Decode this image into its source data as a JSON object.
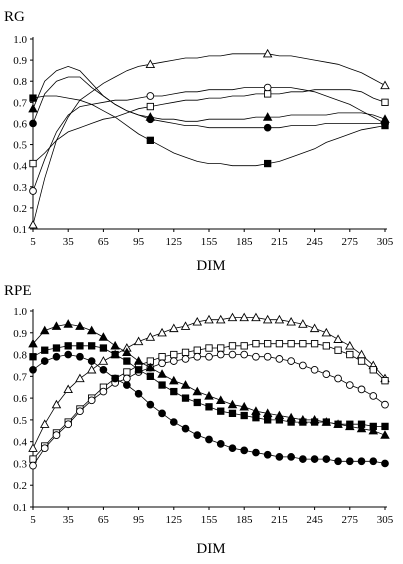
{
  "chart_data": [
    {
      "type": "line",
      "title": "RG",
      "xlabel": "DIM",
      "ylabel": "",
      "xlim": [
        5,
        305
      ],
      "ylim": [
        0.1,
        1.0
      ],
      "x": [
        5,
        15,
        25,
        35,
        45,
        55,
        65,
        75,
        85,
        95,
        105,
        115,
        125,
        135,
        145,
        155,
        165,
        175,
        185,
        195,
        205,
        215,
        225,
        235,
        245,
        255,
        265,
        275,
        285,
        295,
        305
      ],
      "x_ticks": [
        5,
        35,
        65,
        95,
        125,
        155,
        185,
        215,
        245,
        275,
        305
      ],
      "y_ticks": [
        0.1,
        0.2,
        0.3,
        0.4,
        0.5,
        0.6,
        0.7,
        0.8,
        0.9,
        1.0
      ],
      "x_tick_labels": [
        "5",
        "35",
        "65",
        "95",
        "125",
        "155",
        "185",
        "215",
        "245",
        "275",
        "305"
      ],
      "y_tick_labels": [
        "0.1",
        "0.2",
        "0.3",
        "0.4",
        "0.5",
        "0.6",
        "0.7",
        "0.8",
        "0.9",
        "1.0"
      ],
      "grid": false,
      "series": [
        {
          "marker": "triangle-open",
          "step": 10,
          "values": [
            0.12,
            0.34,
            0.52,
            0.63,
            0.71,
            0.75,
            0.79,
            0.82,
            0.85,
            0.87,
            0.88,
            0.89,
            0.9,
            0.91,
            0.91,
            0.92,
            0.92,
            0.93,
            0.93,
            0.93,
            0.93,
            0.92,
            0.92,
            0.91,
            0.9,
            0.89,
            0.88,
            0.86,
            0.84,
            0.81,
            0.78
          ]
        },
        {
          "marker": "circle-open",
          "step": 10,
          "values": [
            0.28,
            0.43,
            0.56,
            0.64,
            0.68,
            0.69,
            0.7,
            0.71,
            0.71,
            0.72,
            0.73,
            0.73,
            0.74,
            0.75,
            0.75,
            0.76,
            0.76,
            0.76,
            0.77,
            0.77,
            0.77,
            0.77,
            0.77,
            0.76,
            0.75,
            0.73,
            0.71,
            0.69,
            0.66,
            0.63,
            0.6
          ]
        },
        {
          "marker": "square-open",
          "step": 10,
          "values": [
            0.41,
            0.46,
            0.52,
            0.56,
            0.58,
            0.6,
            0.62,
            0.63,
            0.65,
            0.67,
            0.68,
            0.69,
            0.7,
            0.71,
            0.71,
            0.72,
            0.72,
            0.73,
            0.73,
            0.74,
            0.74,
            0.74,
            0.75,
            0.75,
            0.76,
            0.76,
            0.76,
            0.76,
            0.75,
            0.72,
            0.7
          ]
        },
        {
          "marker": "triangle-filled",
          "step": 10,
          "values": [
            0.67,
            0.8,
            0.85,
            0.87,
            0.85,
            0.79,
            0.73,
            0.69,
            0.66,
            0.64,
            0.63,
            0.62,
            0.62,
            0.61,
            0.61,
            0.62,
            0.62,
            0.62,
            0.62,
            0.63,
            0.63,
            0.63,
            0.64,
            0.64,
            0.64,
            0.64,
            0.65,
            0.65,
            0.65,
            0.64,
            0.62
          ]
        },
        {
          "marker": "circle-filled",
          "step": 10,
          "values": [
            0.6,
            0.74,
            0.8,
            0.82,
            0.82,
            0.77,
            0.73,
            0.69,
            0.66,
            0.64,
            0.62,
            0.61,
            0.6,
            0.59,
            0.59,
            0.58,
            0.58,
            0.58,
            0.58,
            0.58,
            0.58,
            0.58,
            0.59,
            0.59,
            0.59,
            0.6,
            0.6,
            0.6,
            0.6,
            0.6,
            0.6
          ]
        },
        {
          "marker": "square-filled",
          "step": 10,
          "values": [
            0.72,
            0.73,
            0.73,
            0.72,
            0.71,
            0.69,
            0.66,
            0.63,
            0.59,
            0.55,
            0.52,
            0.49,
            0.46,
            0.44,
            0.42,
            0.41,
            0.41,
            0.4,
            0.4,
            0.4,
            0.41,
            0.42,
            0.44,
            0.46,
            0.48,
            0.51,
            0.53,
            0.55,
            0.57,
            0.58,
            0.59
          ]
        }
      ]
    },
    {
      "type": "line",
      "title": "RPE",
      "xlabel": "DIM",
      "ylabel": "",
      "xlim": [
        5,
        305
      ],
      "ylim": [
        0.1,
        1.0
      ],
      "x": [
        5,
        15,
        25,
        35,
        45,
        55,
        65,
        75,
        85,
        95,
        105,
        115,
        125,
        135,
        145,
        155,
        165,
        175,
        185,
        195,
        205,
        215,
        225,
        235,
        245,
        255,
        265,
        275,
        285,
        295,
        305
      ],
      "x_ticks": [
        5,
        35,
        65,
        95,
        125,
        155,
        185,
        215,
        245,
        275,
        305
      ],
      "y_ticks": [
        0.1,
        0.2,
        0.3,
        0.4,
        0.5,
        0.6,
        0.7,
        0.8,
        0.9,
        1.0
      ],
      "x_tick_labels": [
        "5",
        "35",
        "65",
        "95",
        "125",
        "155",
        "185",
        "215",
        "245",
        "275",
        "305"
      ],
      "y_tick_labels": [
        "0.1",
        "0.2",
        "0.3",
        "0.4",
        "0.5",
        "0.6",
        "0.7",
        "0.8",
        "0.9",
        "1.0"
      ],
      "grid": false,
      "series": [
        {
          "marker": "triangle-open",
          "step": 1,
          "values": [
            0.37,
            0.48,
            0.57,
            0.64,
            0.69,
            0.73,
            0.77,
            0.8,
            0.83,
            0.86,
            0.88,
            0.9,
            0.92,
            0.93,
            0.95,
            0.96,
            0.96,
            0.97,
            0.97,
            0.97,
            0.96,
            0.96,
            0.95,
            0.94,
            0.92,
            0.9,
            0.87,
            0.84,
            0.8,
            0.75,
            0.69
          ]
        },
        {
          "marker": "square-open",
          "step": 1,
          "values": [
            0.32,
            0.38,
            0.44,
            0.49,
            0.55,
            0.6,
            0.65,
            0.69,
            0.72,
            0.75,
            0.77,
            0.79,
            0.8,
            0.81,
            0.82,
            0.83,
            0.83,
            0.84,
            0.84,
            0.85,
            0.85,
            0.85,
            0.85,
            0.85,
            0.85,
            0.84,
            0.82,
            0.8,
            0.77,
            0.73,
            0.68
          ]
        },
        {
          "marker": "circle-open",
          "step": 1,
          "values": [
            0.29,
            0.37,
            0.43,
            0.48,
            0.54,
            0.59,
            0.63,
            0.67,
            0.69,
            0.72,
            0.74,
            0.76,
            0.77,
            0.78,
            0.79,
            0.79,
            0.8,
            0.8,
            0.8,
            0.79,
            0.79,
            0.78,
            0.77,
            0.75,
            0.73,
            0.71,
            0.69,
            0.66,
            0.64,
            0.61,
            0.57
          ]
        },
        {
          "marker": "triangle-filled",
          "step": 1,
          "values": [
            0.85,
            0.91,
            0.93,
            0.94,
            0.93,
            0.91,
            0.88,
            0.84,
            0.81,
            0.77,
            0.74,
            0.71,
            0.68,
            0.66,
            0.63,
            0.61,
            0.59,
            0.57,
            0.56,
            0.54,
            0.53,
            0.52,
            0.51,
            0.5,
            0.5,
            0.49,
            0.48,
            0.47,
            0.46,
            0.45,
            0.43
          ]
        },
        {
          "marker": "square-filled",
          "step": 1,
          "values": [
            0.79,
            0.82,
            0.83,
            0.84,
            0.84,
            0.84,
            0.83,
            0.8,
            0.77,
            0.73,
            0.7,
            0.66,
            0.63,
            0.6,
            0.58,
            0.56,
            0.54,
            0.53,
            0.52,
            0.51,
            0.5,
            0.5,
            0.49,
            0.49,
            0.49,
            0.49,
            0.48,
            0.48,
            0.48,
            0.47,
            0.47
          ]
        },
        {
          "marker": "circle-filled",
          "step": 1,
          "values": [
            0.73,
            0.77,
            0.79,
            0.8,
            0.79,
            0.77,
            0.73,
            0.69,
            0.66,
            0.62,
            0.57,
            0.53,
            0.49,
            0.46,
            0.43,
            0.41,
            0.39,
            0.37,
            0.36,
            0.35,
            0.34,
            0.33,
            0.33,
            0.32,
            0.32,
            0.32,
            0.31,
            0.31,
            0.31,
            0.31,
            0.3
          ]
        }
      ]
    }
  ]
}
